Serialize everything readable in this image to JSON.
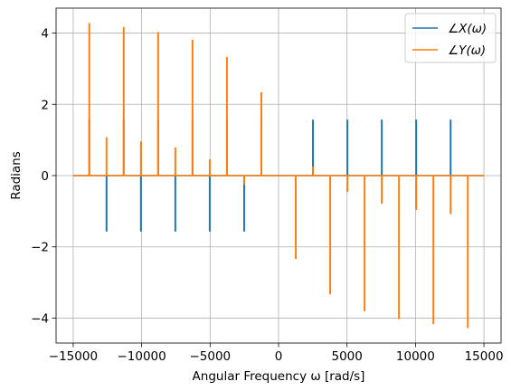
{
  "chart_data": {
    "type": "line",
    "title": "",
    "xlabel": "Angular Frequency ω [rad/s]",
    "ylabel": "Radians",
    "xlim": [
      -16250,
      16250
    ],
    "ylim": [
      -4.7,
      4.7
    ],
    "grid": true,
    "legend_position": "top-right",
    "x_ticks": [
      -15000,
      -10000,
      -5000,
      0,
      5000,
      10000,
      15000
    ],
    "x_tick_labels": [
      "−15000",
      "−10000",
      "−5000",
      "0",
      "5000",
      "10000",
      "15000"
    ],
    "y_ticks": [
      -4,
      -2,
      0,
      2,
      4
    ],
    "y_tick_labels": [
      "−4",
      "−2",
      "0",
      "2",
      "4"
    ],
    "series": [
      {
        "name": "∠X(ω)",
        "color": "#1f77b4",
        "spikes": [
          {
            "x": -13823,
            "y": 1.5708
          },
          {
            "x": -12566,
            "y": -1.5708
          },
          {
            "x": -11310,
            "y": 1.5708
          },
          {
            "x": -10053,
            "y": -1.5708
          },
          {
            "x": -8796,
            "y": 1.5708
          },
          {
            "x": -7540,
            "y": -1.5708
          },
          {
            "x": -6283,
            "y": 1.5708
          },
          {
            "x": -5027,
            "y": -1.5708
          },
          {
            "x": -3770,
            "y": 1.5708
          },
          {
            "x": -2513,
            "y": -1.5708
          },
          {
            "x": -1257,
            "y": 1.5708
          },
          {
            "x": 2513,
            "y": 1.5708
          },
          {
            "x": 5027,
            "y": 1.5708
          },
          {
            "x": 7540,
            "y": 1.5708
          },
          {
            "x": 10053,
            "y": 1.5708
          },
          {
            "x": 12566,
            "y": 1.5708
          }
        ]
      },
      {
        "name": "∠Y(ω)",
        "color": "#ff7f0e",
        "spikes": [
          {
            "x": -13823,
            "y": 4.28
          },
          {
            "x": -12566,
            "y": 1.08
          },
          {
            "x": -11310,
            "y": 4.17
          },
          {
            "x": -10053,
            "y": 0.96
          },
          {
            "x": -8796,
            "y": 4.03
          },
          {
            "x": -7540,
            "y": 0.79
          },
          {
            "x": -6283,
            "y": 3.81
          },
          {
            "x": -5027,
            "y": 0.46
          },
          {
            "x": -3770,
            "y": 3.33
          },
          {
            "x": -2513,
            "y": -0.25
          },
          {
            "x": -1257,
            "y": 2.34
          },
          {
            "x": 1257,
            "y": -2.34
          },
          {
            "x": 2513,
            "y": 0.25
          },
          {
            "x": 3770,
            "y": -3.33
          },
          {
            "x": 5027,
            "y": -0.46
          },
          {
            "x": 6283,
            "y": -3.81
          },
          {
            "x": 7540,
            "y": -0.79
          },
          {
            "x": 8796,
            "y": -4.03
          },
          {
            "x": 10053,
            "y": -0.96
          },
          {
            "x": 11310,
            "y": -4.17
          },
          {
            "x": 12566,
            "y": -1.08
          },
          {
            "x": 13823,
            "y": -4.28
          }
        ]
      }
    ],
    "baseline": {
      "x_start": -15000,
      "x_end": 15000,
      "y": 0
    }
  }
}
